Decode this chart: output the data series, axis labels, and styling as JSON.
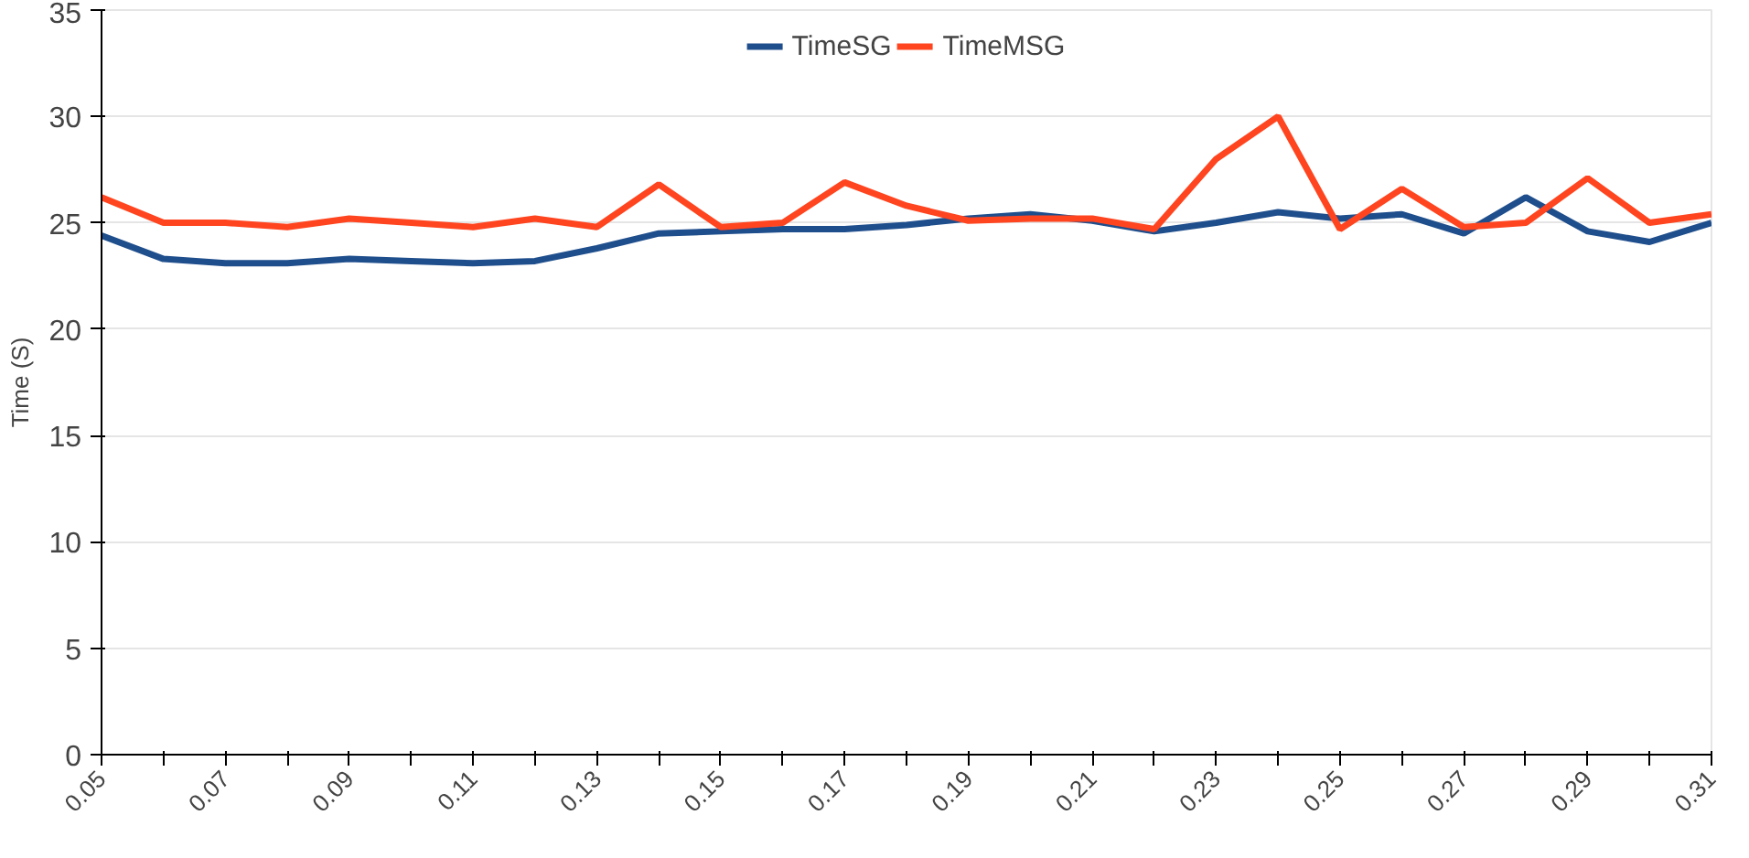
{
  "chart_data": {
    "type": "line",
    "ylabel": "Time (S)",
    "x": [
      0.05,
      0.06,
      0.07,
      0.08,
      0.09,
      0.1,
      0.11,
      0.12,
      0.13,
      0.14,
      0.15,
      0.16,
      0.17,
      0.18,
      0.19,
      0.2,
      0.21,
      0.22,
      0.23,
      0.24,
      0.25,
      0.26,
      0.27,
      0.28,
      0.29,
      0.3,
      0.31
    ],
    "series": [
      {
        "name": "TimeSG",
        "color": "#1f4e8c",
        "values": [
          24.4,
          23.3,
          23.1,
          23.1,
          23.3,
          23.2,
          23.1,
          23.2,
          23.8,
          24.5,
          24.6,
          24.7,
          24.7,
          24.9,
          25.2,
          25.4,
          25.1,
          24.6,
          25.0,
          25.5,
          25.2,
          25.4,
          24.5,
          26.2,
          24.6,
          24.1,
          25.0
        ]
      },
      {
        "name": "TimeMSG",
        "color": "#ff4520",
        "values": [
          26.2,
          25.0,
          25.0,
          24.8,
          25.2,
          25.0,
          24.8,
          25.2,
          24.8,
          26.8,
          24.8,
          25.0,
          26.9,
          25.8,
          25.1,
          25.2,
          25.2,
          24.7,
          28.0,
          30.0,
          24.7,
          26.6,
          24.8,
          25.0,
          27.1,
          25.0,
          25.4
        ]
      }
    ],
    "xlim": [
      0.05,
      0.31
    ],
    "xticks": [
      0.05,
      {
        "value": 0.06,
        "label": null
      },
      0.07,
      {
        "value": 0.08,
        "label": null
      },
      0.09,
      {
        "value": 0.1,
        "label": null
      },
      0.11,
      {
        "value": 0.12,
        "label": null
      },
      0.13,
      {
        "value": 0.14,
        "label": null
      },
      0.15,
      {
        "value": 0.16,
        "label": null
      },
      0.17,
      {
        "value": 0.18,
        "label": null
      },
      0.19,
      {
        "value": 0.2,
        "label": null
      },
      0.21,
      {
        "value": 0.22,
        "label": null
      },
      0.23,
      {
        "value": 0.24,
        "label": null
      },
      0.25,
      {
        "value": 0.26,
        "label": null
      },
      0.27,
      {
        "value": 0.28,
        "label": null
      },
      0.29,
      {
        "value": 0.3,
        "label": null
      },
      0.31
    ],
    "ylim": [
      0,
      35
    ],
    "yticks": [
      0,
      5,
      10,
      15,
      20,
      25,
      30,
      35
    ],
    "grid": "y",
    "legend": "top",
    "marker": "none",
    "line_style": "solid"
  }
}
